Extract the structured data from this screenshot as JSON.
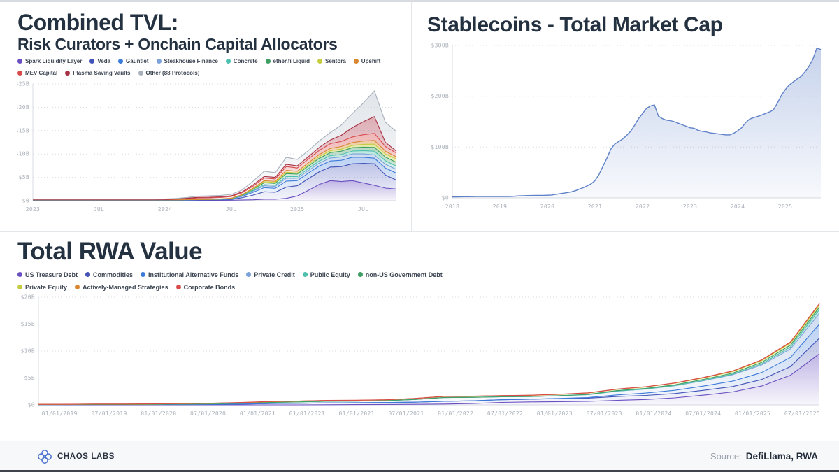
{
  "panels": {
    "tvl": {
      "title_line1": "Combined TVL:",
      "title_line2": "Risk Curators + Onchain Capital Allocators"
    },
    "stablecoins": {
      "title": "Stablecoins - Total Market Cap"
    },
    "rwa": {
      "title": "Total RWA Value"
    }
  },
  "footer": {
    "brand": "CHAOS LABS",
    "source_label": "Source:",
    "source_value": "DefiLlama, RWA",
    "logo_color": "#4b72cc"
  },
  "colors": {
    "grid": "#d7dbe0",
    "tick_text": "#a9b0b9",
    "title_text": "#243140"
  },
  "chart_data": [
    {
      "id": "tvl",
      "type": "area",
      "stacked": true,
      "title": "Combined TVL: Risk Curators + Onchain Capital Allocators",
      "x_unit": "month",
      "x_range": "Jan 2023 - Oct 2025",
      "ylim": [
        0,
        25
      ],
      "grid": true,
      "legend_position": "top",
      "legend_break_after": 7,
      "yticks": [
        {
          "v": 0,
          "label": "$0"
        },
        {
          "v": 5,
          "label": "$5B"
        },
        {
          "v": 10,
          "label": "$10B"
        },
        {
          "v": 15,
          "label": "$15B"
        },
        {
          "v": 20,
          "label": "$20B"
        },
        {
          "v": 25,
          "label": "$25B"
        }
      ],
      "xticks": {
        "labels": [
          "2023",
          "JUL",
          "2024",
          "JUL",
          "2025",
          "JUL"
        ],
        "indices": [
          0,
          6,
          12,
          18,
          24,
          30
        ]
      },
      "series": [
        {
          "name": "Spark Liquidity Layer",
          "color": "#6a4fc1",
          "fill_top": 0.42,
          "values": [
            0.05,
            0.05,
            0.05,
            0.05,
            0.05,
            0.05,
            0.05,
            0.05,
            0.05,
            0.05,
            0.05,
            0.05,
            0.05,
            0.05,
            0.06,
            0.07,
            0.08,
            0.09,
            0.1,
            0.15,
            0.2,
            0.3,
            0.3,
            0.5,
            1.0,
            2.2,
            3.5,
            4.3,
            4.1,
            4.3,
            3.8,
            3.3,
            2.7,
            2.5
          ]
        },
        {
          "name": "Veda",
          "color": "#4353b8",
          "fill_top": 0.35,
          "values": [
            0.05,
            0.05,
            0.05,
            0.05,
            0.05,
            0.05,
            0.05,
            0.05,
            0.05,
            0.05,
            0.05,
            0.05,
            0.06,
            0.06,
            0.07,
            0.08,
            0.09,
            0.1,
            0.15,
            0.5,
            1.0,
            1.6,
            1.5,
            2.4,
            2.2,
            2.5,
            2.7,
            2.9,
            3.2,
            3.6,
            4.2,
            4.6,
            2.8,
            1.9
          ]
        },
        {
          "name": "Gauntlet",
          "color": "#3d7bd9",
          "fill_top": 0.35,
          "values": [
            0.03,
            0.03,
            0.03,
            0.03,
            0.03,
            0.03,
            0.03,
            0.03,
            0.03,
            0.03,
            0.03,
            0.03,
            0.03,
            0.03,
            0.04,
            0.05,
            0.05,
            0.06,
            0.1,
            0.3,
            0.6,
            0.9,
            0.85,
            1.3,
            1.1,
            1.2,
            1.25,
            1.3,
            1.35,
            1.4,
            1.3,
            1.2,
            1.5,
            1.5
          ]
        },
        {
          "name": "Steakhouse Finance",
          "color": "#7da2d8",
          "fill_top": 0.38,
          "values": [
            0.02,
            0.02,
            0.02,
            0.02,
            0.02,
            0.02,
            0.02,
            0.02,
            0.02,
            0.02,
            0.02,
            0.02,
            0.02,
            0.02,
            0.02,
            0.02,
            0.02,
            0.03,
            0.05,
            0.1,
            0.25,
            0.4,
            0.4,
            0.6,
            0.5,
            0.55,
            0.6,
            0.65,
            0.7,
            0.72,
            0.72,
            0.7,
            0.8,
            0.8
          ]
        },
        {
          "name": "Concrete",
          "color": "#4fbfae",
          "fill_top": 0.38,
          "values": [
            0.01,
            0.01,
            0.01,
            0.01,
            0.01,
            0.01,
            0.01,
            0.01,
            0.01,
            0.01,
            0.01,
            0.01,
            0.01,
            0.01,
            0.01,
            0.01,
            0.01,
            0.02,
            0.03,
            0.05,
            0.15,
            0.25,
            0.25,
            0.4,
            0.35,
            0.4,
            0.45,
            0.5,
            0.55,
            0.6,
            0.7,
            0.8,
            0.75,
            0.7
          ]
        },
        {
          "name": "ether.fi Liquid",
          "color": "#3f9e63",
          "fill_top": 0.38,
          "values": [
            0.02,
            0.02,
            0.02,
            0.02,
            0.02,
            0.02,
            0.02,
            0.02,
            0.02,
            0.02,
            0.02,
            0.02,
            0.02,
            0.02,
            0.02,
            0.02,
            0.02,
            0.03,
            0.05,
            0.1,
            0.25,
            0.4,
            0.4,
            0.6,
            0.55,
            0.55,
            0.6,
            0.65,
            0.7,
            0.72,
            0.75,
            0.8,
            0.8,
            0.8
          ]
        },
        {
          "name": "Sentora",
          "color": "#c5cc3f",
          "fill_top": 0.45,
          "values": [
            0.01,
            0.01,
            0.01,
            0.01,
            0.01,
            0.01,
            0.01,
            0.01,
            0.01,
            0.01,
            0.01,
            0.01,
            0.01,
            0.01,
            0.01,
            0.01,
            0.01,
            0.01,
            0.02,
            0.05,
            0.1,
            0.2,
            0.2,
            0.3,
            0.25,
            0.3,
            0.35,
            0.4,
            0.45,
            0.5,
            0.6,
            0.7,
            0.65,
            0.7
          ]
        },
        {
          "name": "Upshift",
          "color": "#d8862f",
          "fill_top": 0.42,
          "values": [
            0.01,
            0.01,
            0.01,
            0.01,
            0.01,
            0.01,
            0.01,
            0.01,
            0.01,
            0.01,
            0.01,
            0.01,
            0.01,
            0.01,
            0.01,
            0.01,
            0.01,
            0.02,
            0.03,
            0.05,
            0.15,
            0.25,
            0.25,
            0.4,
            0.35,
            0.4,
            0.45,
            0.5,
            0.55,
            0.6,
            0.7,
            0.8,
            0.6,
            0.5
          ]
        },
        {
          "name": "MEV Capital",
          "color": "#d84b4b",
          "fill_top": 0.4,
          "values": [
            0.05,
            0.05,
            0.05,
            0.05,
            0.05,
            0.05,
            0.05,
            0.05,
            0.05,
            0.05,
            0.05,
            0.05,
            0.05,
            0.1,
            0.2,
            0.3,
            0.3,
            0.32,
            0.35,
            0.4,
            0.45,
            0.55,
            0.5,
            0.8,
            0.7,
            0.8,
            0.9,
            1.0,
            1.1,
            1.2,
            1.35,
            1.5,
            1.0,
            0.8
          ]
        },
        {
          "name": "Plasma Saving Vaults",
          "color": "#a83245",
          "fill_top": 0.4,
          "values": [
            0,
            0,
            0,
            0,
            0,
            0,
            0,
            0,
            0,
            0,
            0,
            0,
            0,
            0.05,
            0.1,
            0.15,
            0.15,
            0.15,
            0.15,
            0.2,
            0.25,
            0.35,
            0.35,
            0.5,
            0.45,
            0.5,
            0.6,
            0.8,
            1.3,
            2.0,
            2.8,
            3.6,
            0.9,
            0.4
          ]
        },
        {
          "name": "Other (88 Protocols)",
          "color": "#a7b0bc",
          "fill": "#ccd3da",
          "fill_top": 0.6,
          "values": [
            0.08,
            0.08,
            0.08,
            0.08,
            0.08,
            0.08,
            0.08,
            0.08,
            0.08,
            0.08,
            0.08,
            0.08,
            0.1,
            0.12,
            0.15,
            0.25,
            0.3,
            0.3,
            0.3,
            0.4,
            0.8,
            1.1,
            1.0,
            1.5,
            1.4,
            1.3,
            1.4,
            1.6,
            2.2,
            3.0,
            4.0,
            5.5,
            4.3,
            4.2
          ]
        }
      ]
    },
    {
      "id": "stablecoins",
      "type": "area",
      "stacked": false,
      "title": "Stablecoins - Total Market Cap",
      "x_unit": "month",
      "x_range": "Jan 2018 - Oct 2025",
      "ylim": [
        0,
        300
      ],
      "grid": true,
      "legend_position": "none",
      "yticks": [
        {
          "v": 0,
          "label": "$0"
        },
        {
          "v": 100,
          "label": "$100B"
        },
        {
          "v": 200,
          "label": "$200B"
        },
        {
          "v": 300,
          "label": "$300B"
        }
      ],
      "xticks": {
        "labels": [
          "2018",
          "2019",
          "2020",
          "2021",
          "2022",
          "2023",
          "2024",
          "2025"
        ],
        "indices": [
          0,
          12,
          24,
          36,
          48,
          60,
          72,
          84
        ]
      },
      "series": [
        {
          "name": "Total Market Cap",
          "color": "#5e81c8",
          "fill_top": 0.35,
          "values": [
            2.0,
            2.1,
            2.2,
            2.3,
            2.4,
            2.5,
            2.6,
            2.7,
            2.8,
            2.7,
            2.8,
            2.7,
            2.7,
            2.8,
            2.8,
            2.9,
            3.5,
            4.0,
            4.3,
            4.6,
            4.7,
            4.8,
            4.9,
            5.0,
            5.2,
            5.6,
            6.8,
            8.0,
            9.2,
            10.5,
            11.8,
            14.0,
            17.0,
            20.0,
            23.5,
            27.5,
            34,
            46,
            62,
            78,
            96,
            106,
            111,
            116,
            123,
            131,
            143,
            156,
            166,
            176,
            181,
            183,
            161,
            156,
            153,
            152,
            150,
            147,
            144,
            141,
            138,
            137,
            133,
            131,
            130,
            128,
            127,
            126,
            125,
            124,
            124,
            127,
            132,
            138,
            148,
            155,
            158,
            160,
            163,
            166,
            169,
            173,
            186,
            201,
            213,
            222,
            228,
            234,
            239,
            248,
            259,
            273,
            295,
            292
          ]
        }
      ]
    },
    {
      "id": "rwa",
      "type": "area",
      "stacked": true,
      "title": "Total RWA Value",
      "x_unit": "quarter",
      "x_range": "2019 Q1 - 2025 Q4",
      "ylim": [
        0,
        20
      ],
      "grid": true,
      "legend_position": "top",
      "legend_break_after": 5,
      "yticks": [
        {
          "v": 0,
          "label": "$0"
        },
        {
          "v": 5,
          "label": "$5B"
        },
        {
          "v": 10,
          "label": "$10B"
        },
        {
          "v": 15,
          "label": "$15B"
        },
        {
          "v": 20,
          "label": "$20B"
        }
      ],
      "xticks": {
        "labels": [
          "01/01/2019",
          "07/01/2019",
          "01/01/2020",
          "07/01/2020",
          "01/01/2021",
          "01/01/2021",
          "01/01/2021",
          "07/01/2021",
          "01/01/2022",
          "07/01/2022",
          "01/01/2023",
          "07/01/2023",
          "01/01/2024",
          "07/01/2024",
          "01/01/2025",
          "07/01/2025"
        ],
        "spread": "even"
      },
      "series": [
        {
          "name": "US Treasure Debt",
          "color": "#6a4fc1",
          "fill_top": 0.42,
          "values": [
            0,
            0,
            0,
            0,
            0,
            0,
            0,
            0,
            0,
            0,
            0.02,
            0.05,
            0.08,
            0.1,
            0.15,
            0.25,
            0.45,
            0.55,
            0.6,
            0.65,
            0.85,
            1.0,
            1.3,
            1.8,
            2.4,
            3.5,
            5.5,
            9.5
          ]
        },
        {
          "name": "Commodities",
          "color": "#4353b8",
          "fill_top": 0.35,
          "values": [
            0.03,
            0.04,
            0.05,
            0.05,
            0.06,
            0.08,
            0.1,
            0.15,
            0.25,
            0.3,
            0.35,
            0.35,
            0.35,
            0.4,
            0.5,
            0.5,
            0.5,
            0.5,
            0.55,
            0.6,
            0.7,
            0.75,
            0.8,
            0.9,
            1.0,
            1.2,
            1.6,
            2.9
          ]
        },
        {
          "name": "Institutional Alternative Funds",
          "color": "#3d7bd9",
          "fill_top": 0.35,
          "values": [
            0,
            0,
            0,
            0,
            0,
            0,
            0,
            0,
            0,
            0,
            0,
            0,
            0,
            0,
            0,
            0,
            0,
            0,
            0.05,
            0.1,
            0.3,
            0.45,
            0.6,
            0.8,
            1.0,
            1.3,
            1.7,
            2.6
          ]
        },
        {
          "name": "Private Credit",
          "color": "#7da2d8",
          "fill_top": 0.38,
          "values": [
            0.02,
            0.02,
            0.03,
            0.03,
            0.05,
            0.08,
            0.1,
            0.15,
            0.2,
            0.25,
            0.3,
            0.3,
            0.35,
            0.5,
            0.7,
            0.65,
            0.55,
            0.5,
            0.5,
            0.55,
            0.7,
            0.75,
            0.85,
            1.0,
            1.2,
            1.4,
            1.6,
            2.0
          ]
        },
        {
          "name": "Public Equity",
          "color": "#4fbfae",
          "fill_top": 0.38,
          "values": [
            0,
            0,
            0,
            0,
            0,
            0,
            0,
            0,
            0,
            0,
            0,
            0,
            0,
            0,
            0,
            0,
            0,
            0,
            0,
            0,
            0,
            0,
            0.02,
            0.05,
            0.1,
            0.2,
            0.35,
            0.7
          ]
        },
        {
          "name": "non-US Government Debt",
          "color": "#3f9e63",
          "fill_top": 0.38,
          "values": [
            0,
            0,
            0,
            0,
            0,
            0,
            0,
            0,
            0,
            0,
            0,
            0,
            0,
            0,
            0,
            0,
            0,
            0,
            0,
            0.05,
            0.1,
            0.12,
            0.15,
            0.18,
            0.2,
            0.28,
            0.35,
            0.45
          ]
        },
        {
          "name": "Private Equity",
          "color": "#c5cc3f",
          "fill_top": 0.5,
          "values": [
            0.05,
            0.05,
            0.06,
            0.06,
            0.07,
            0.08,
            0.1,
            0.12,
            0.15,
            0.15,
            0.15,
            0.15,
            0.15,
            0.18,
            0.2,
            0.2,
            0.2,
            0.22,
            0.25,
            0.25,
            0.25,
            0.28,
            0.3,
            0.3,
            0.3,
            0.35,
            0.4,
            0.45
          ]
        },
        {
          "name": "Actively-Managed Strategies",
          "color": "#d8862f",
          "fill_top": 0.42,
          "values": [
            0,
            0,
            0,
            0,
            0,
            0,
            0,
            0,
            0,
            0,
            0,
            0,
            0,
            0,
            0,
            0,
            0,
            0,
            0,
            0,
            0,
            0,
            0,
            0.02,
            0.05,
            0.08,
            0.1,
            0.15
          ]
        },
        {
          "name": "Corporate Bonds",
          "color": "#d84b4b",
          "fill_top": 0.4,
          "values": [
            0.01,
            0.01,
            0.01,
            0.01,
            0.02,
            0.02,
            0.02,
            0.02,
            0.02,
            0.02,
            0.02,
            0.02,
            0.02,
            0.02,
            0.02,
            0.02,
            0.02,
            0.02,
            0.02,
            0.03,
            0.03,
            0.03,
            0.04,
            0.05,
            0.05,
            0.06,
            0.08,
            0.1
          ]
        }
      ]
    }
  ]
}
